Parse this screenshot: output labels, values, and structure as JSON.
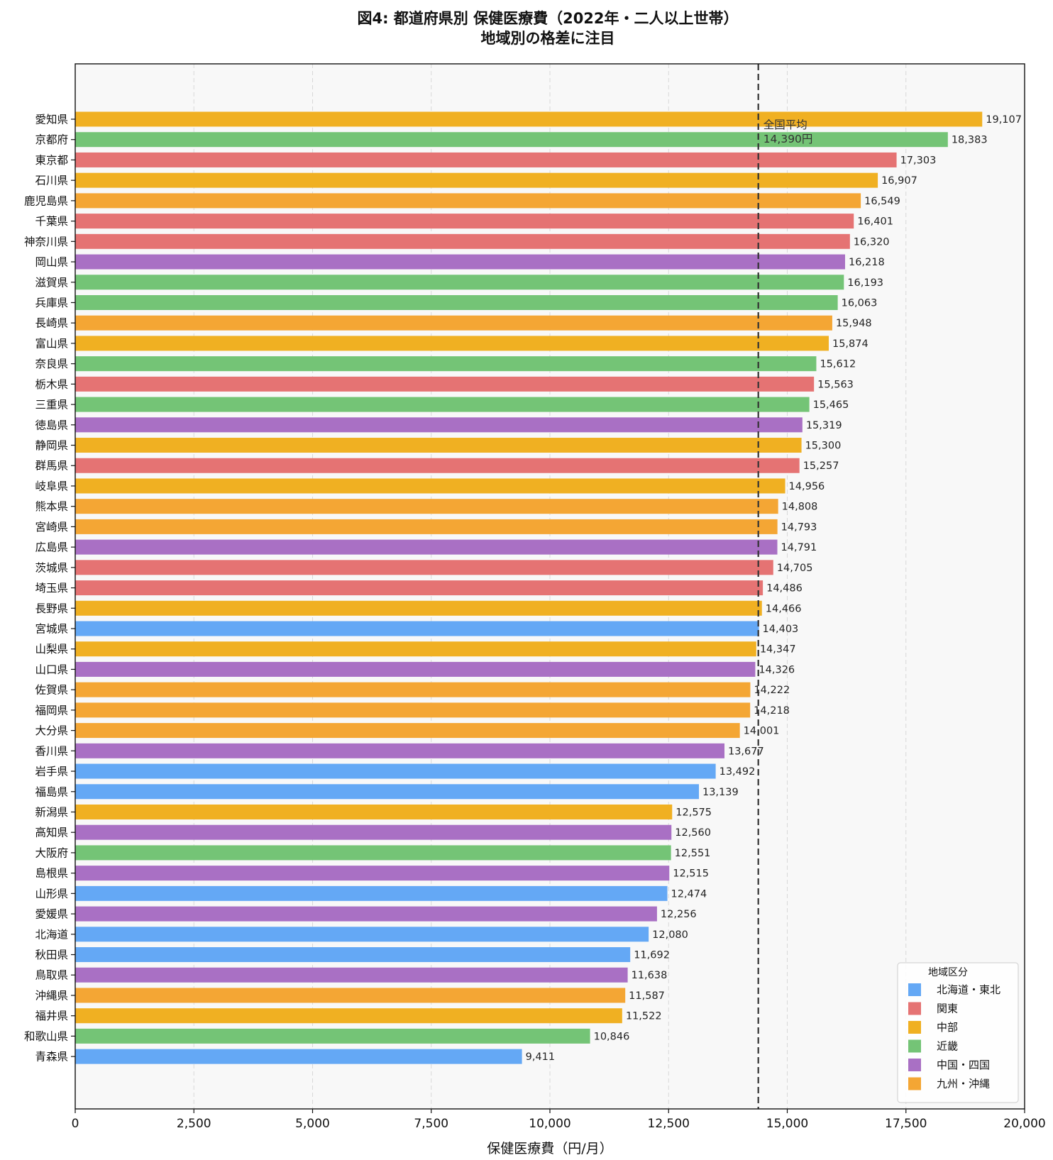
{
  "chart_data": {
    "type": "bar",
    "orientation": "horizontal",
    "title": "図4: 都道府県別 保健医療費（2022年・二人以上世帯）",
    "subtitle": "地域別の格差に注目",
    "xlabel": "保健医療費（円/月）",
    "ylabel": "",
    "xlim": [
      0,
      20000
    ],
    "xticks": [
      0,
      2500,
      5000,
      7500,
      10000,
      12500,
      15000,
      17500,
      20000
    ],
    "xtick_labels": [
      "0",
      "2,500",
      "5,000",
      "7,500",
      "10,000",
      "12,500",
      "15,000",
      "17,500",
      "20,000"
    ],
    "grid": "vertical dashed",
    "reference_line": {
      "value": 14390,
      "label_line1": "全国平均",
      "label_line2": "14,390円"
    },
    "legend": {
      "title": "地域区分",
      "placement": "bottom-right",
      "items": [
        {
          "label": "北海道・東北",
          "color": "#64a8f5"
        },
        {
          "label": "関東",
          "color": "#e57373"
        },
        {
          "label": "中部",
          "color": "#f0b022"
        },
        {
          "label": "近畿",
          "color": "#74c476"
        },
        {
          "label": "中国・四国",
          "color": "#a970c4"
        },
        {
          "label": "九州・沖縄",
          "color": "#f4a634"
        }
      ]
    },
    "bars": [
      {
        "category": "愛知県",
        "value": 19107,
        "value_label": "19,107",
        "region": "中部"
      },
      {
        "category": "京都府",
        "value": 18383,
        "value_label": "18,383",
        "region": "近畿"
      },
      {
        "category": "東京都",
        "value": 17303,
        "value_label": "17,303",
        "region": "関東"
      },
      {
        "category": "石川県",
        "value": 16907,
        "value_label": "16,907",
        "region": "中部"
      },
      {
        "category": "鹿児島県",
        "value": 16549,
        "value_label": "16,549",
        "region": "九州・沖縄"
      },
      {
        "category": "千葉県",
        "value": 16401,
        "value_label": "16,401",
        "region": "関東"
      },
      {
        "category": "神奈川県",
        "value": 16320,
        "value_label": "16,320",
        "region": "関東"
      },
      {
        "category": "岡山県",
        "value": 16218,
        "value_label": "16,218",
        "region": "中国・四国"
      },
      {
        "category": "滋賀県",
        "value": 16193,
        "value_label": "16,193",
        "region": "近畿"
      },
      {
        "category": "兵庫県",
        "value": 16063,
        "value_label": "16,063",
        "region": "近畿"
      },
      {
        "category": "長崎県",
        "value": 15948,
        "value_label": "15,948",
        "region": "九州・沖縄"
      },
      {
        "category": "富山県",
        "value": 15874,
        "value_label": "15,874",
        "region": "中部"
      },
      {
        "category": "奈良県",
        "value": 15612,
        "value_label": "15,612",
        "region": "近畿"
      },
      {
        "category": "栃木県",
        "value": 15563,
        "value_label": "15,563",
        "region": "関東"
      },
      {
        "category": "三重県",
        "value": 15465,
        "value_label": "15,465",
        "region": "近畿"
      },
      {
        "category": "徳島県",
        "value": 15319,
        "value_label": "15,319",
        "region": "中国・四国"
      },
      {
        "category": "静岡県",
        "value": 15300,
        "value_label": "15,300",
        "region": "中部"
      },
      {
        "category": "群馬県",
        "value": 15257,
        "value_label": "15,257",
        "region": "関東"
      },
      {
        "category": "岐阜県",
        "value": 14956,
        "value_label": "14,956",
        "region": "中部"
      },
      {
        "category": "熊本県",
        "value": 14808,
        "value_label": "14,808",
        "region": "九州・沖縄"
      },
      {
        "category": "宮崎県",
        "value": 14793,
        "value_label": "14,793",
        "region": "九州・沖縄"
      },
      {
        "category": "広島県",
        "value": 14791,
        "value_label": "14,791",
        "region": "中国・四国"
      },
      {
        "category": "茨城県",
        "value": 14705,
        "value_label": "14,705",
        "region": "関東"
      },
      {
        "category": "埼玉県",
        "value": 14486,
        "value_label": "14,486",
        "region": "関東"
      },
      {
        "category": "長野県",
        "value": 14466,
        "value_label": "14,466",
        "region": "中部"
      },
      {
        "category": "宮城県",
        "value": 14403,
        "value_label": "14,403",
        "region": "北海道・東北"
      },
      {
        "category": "山梨県",
        "value": 14347,
        "value_label": "14,347",
        "region": "中部"
      },
      {
        "category": "山口県",
        "value": 14326,
        "value_label": "14,326",
        "region": "中国・四国"
      },
      {
        "category": "佐賀県",
        "value": 14222,
        "value_label": "14,222",
        "region": "九州・沖縄"
      },
      {
        "category": "福岡県",
        "value": 14218,
        "value_label": "14,218",
        "region": "九州・沖縄"
      },
      {
        "category": "大分県",
        "value": 14001,
        "value_label": "14,001",
        "region": "九州・沖縄"
      },
      {
        "category": "香川県",
        "value": 13677,
        "value_label": "13,677",
        "region": "中国・四国"
      },
      {
        "category": "岩手県",
        "value": 13492,
        "value_label": "13,492",
        "region": "北海道・東北"
      },
      {
        "category": "福島県",
        "value": 13139,
        "value_label": "13,139",
        "region": "北海道・東北"
      },
      {
        "category": "新潟県",
        "value": 12575,
        "value_label": "12,575",
        "region": "中部"
      },
      {
        "category": "高知県",
        "value": 12560,
        "value_label": "12,560",
        "region": "中国・四国"
      },
      {
        "category": "大阪府",
        "value": 12551,
        "value_label": "12,551",
        "region": "近畿"
      },
      {
        "category": "島根県",
        "value": 12515,
        "value_label": "12,515",
        "region": "中国・四国"
      },
      {
        "category": "山形県",
        "value": 12474,
        "value_label": "12,474",
        "region": "北海道・東北"
      },
      {
        "category": "愛媛県",
        "value": 12256,
        "value_label": "12,256",
        "region": "中国・四国"
      },
      {
        "category": "北海道",
        "value": 12080,
        "value_label": "12,080",
        "region": "北海道・東北"
      },
      {
        "category": "秋田県",
        "value": 11692,
        "value_label": "11,692",
        "region": "北海道・東北"
      },
      {
        "category": "鳥取県",
        "value": 11638,
        "value_label": "11,638",
        "region": "中国・四国"
      },
      {
        "category": "沖縄県",
        "value": 11587,
        "value_label": "11,587",
        "region": "九州・沖縄"
      },
      {
        "category": "福井県",
        "value": 11522,
        "value_label": "11,522",
        "region": "中部"
      },
      {
        "category": "和歌山県",
        "value": 10846,
        "value_label": "10,846",
        "region": "近畿"
      },
      {
        "category": "青森県",
        "value": 9411,
        "value_label": "9,411",
        "region": "北海道・東北"
      }
    ]
  }
}
